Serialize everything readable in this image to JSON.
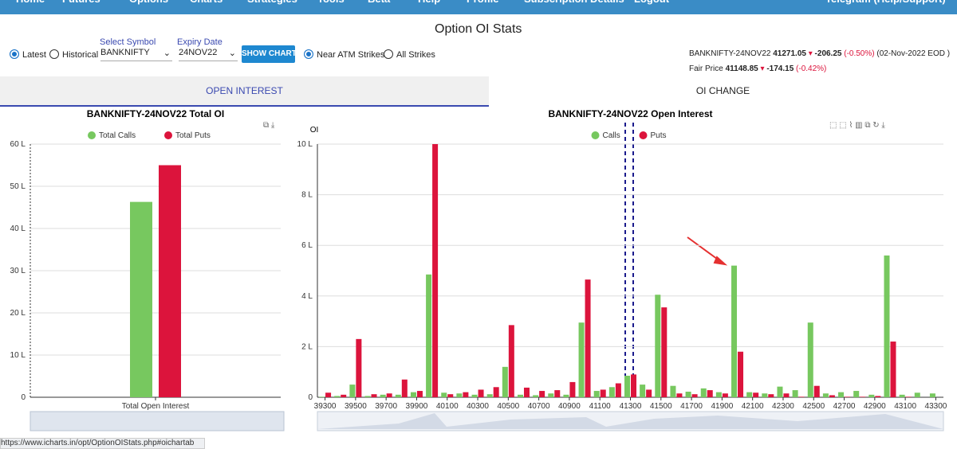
{
  "nav": [
    "Home",
    "Futures",
    "Options",
    "Charts",
    "Strategies",
    "Tools",
    "Beta",
    "Help",
    "Profile",
    "Subscription Details",
    "Logout",
    "Telegram (Help/Support)"
  ],
  "page_title": "Option OI Stats",
  "controls": {
    "latest": "Latest",
    "historical": "Historical",
    "symbol_label": "Select Symbol",
    "symbol": "BANKNIFTY",
    "expiry_label": "Expiry Date",
    "expiry": "24NOV22",
    "button": "SHOW CHART",
    "near_atm": "Near ATM Strikes",
    "all_strikes": "All Strikes"
  },
  "quote": {
    "symbol": "BANKNIFTY-24NOV22",
    "price": "41271.05",
    "change": "-206.25",
    "change_pct": "(-0.50%)",
    "date": "(02-Nov-2022 EOD )",
    "fair_label": "Fair Price",
    "fair_price": "41148.85",
    "fair_change": "-174.15",
    "fair_change_pct": "(-0.42%)"
  },
  "tabs": [
    "OPEN INTEREST",
    "OI CHANGE"
  ],
  "status_url": "https://www.icharts.in/opt/OptionOIStats.php#oichartab",
  "chart_data": [
    {
      "type": "bar",
      "title": "BANKNIFTY-24NOV22 Total OI",
      "categories": [
        "Total Open Interest"
      ],
      "series": [
        {
          "name": "Total Calls",
          "color": "#77c85f",
          "values": [
            46.3
          ]
        },
        {
          "name": "Total Puts",
          "color": "#dc143c",
          "values": [
            55
          ]
        }
      ],
      "ylim": [
        0,
        60
      ],
      "yticks": [
        0,
        {
          "value": 10,
          "label": "10 L"
        },
        {
          "value": 20,
          "label": "20 L"
        },
        {
          "value": 30,
          "label": "30 L"
        },
        {
          "value": 40,
          "label": "40 L"
        },
        {
          "value": 50,
          "label": "50 L"
        },
        {
          "value": 60,
          "label": "60 L"
        }
      ]
    },
    {
      "type": "bar",
      "title": "BANKNIFTY-24NOV22 Open Interest",
      "y_label": "OI",
      "categories": [
        "39300",
        null,
        "39500",
        null,
        "39700",
        null,
        "39900",
        null,
        "40100",
        null,
        "40300",
        null,
        "40500",
        null,
        "40700",
        null,
        "40900",
        null,
        "41100",
        null,
        "41300",
        null,
        "41500",
        null,
        "41700",
        null,
        "41900",
        null,
        "42100",
        null,
        "42300",
        null,
        "42500",
        null,
        "42700",
        null,
        "42900",
        null,
        "43100",
        null,
        "43300"
      ],
      "series": [
        {
          "name": "Calls",
          "color": "#77c85f",
          "values": [
            0.02,
            0.05,
            0.5,
            0.05,
            0.1,
            0.1,
            0.2,
            4.85,
            0.18,
            0.15,
            0.1,
            0.12,
            1.2,
            0.1,
            0.08,
            0.15,
            0.1,
            2.95,
            0.25,
            0.4,
            0.85,
            0.5,
            4.05,
            0.45,
            0.22,
            0.35,
            0.2,
            5.2,
            0.2,
            0.15,
            0.42,
            0.28,
            2.95,
            0.15,
            0.2,
            0.25,
            0.1,
            5.6,
            0.1,
            0.18,
            0.15
          ]
        },
        {
          "name": "Puts",
          "color": "#dc143c",
          "values": [
            0.18,
            0.1,
            2.3,
            0.12,
            0.15,
            0.7,
            0.25,
            10,
            0.12,
            0.2,
            0.3,
            0.4,
            2.85,
            0.38,
            0.25,
            0.28,
            0.6,
            4.65,
            0.3,
            0.55,
            0.9,
            0.3,
            3.55,
            0.15,
            0.12,
            0.28,
            0.15,
            1.8,
            0.18,
            0.12,
            0.15,
            0.02,
            0.45,
            0.08,
            0.02,
            0.02,
            0.05,
            2.2,
            0.02,
            0,
            0
          ]
        }
      ],
      "ylim": [
        0,
        10
      ],
      "yticks": [
        0,
        {
          "value": 2,
          "label": "2 L"
        },
        {
          "value": 4,
          "label": "4 L"
        },
        {
          "value": 6,
          "label": "6 L"
        },
        {
          "value": 8,
          "label": "8 L"
        },
        {
          "value": 10,
          "label": "10 L"
        }
      ]
    }
  ]
}
